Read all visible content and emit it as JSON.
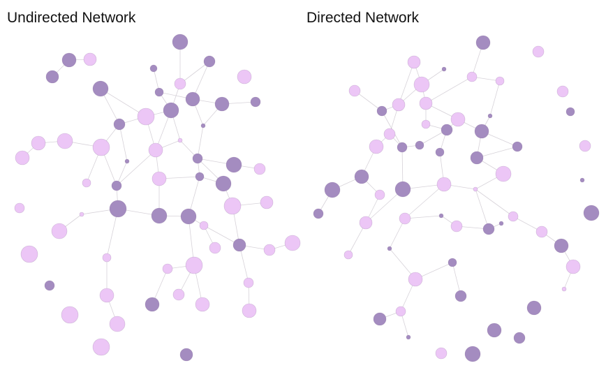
{
  "colors": {
    "dark": "#a48cc0",
    "light": "#ecc6f6",
    "edge": "#c9c3cc",
    "title": "#111111"
  },
  "networks": [
    {
      "title": "Undirected Network",
      "nodes": [
        [
          258,
          60,
          11,
          "d"
        ],
        [
          99,
          86,
          10,
          "d"
        ],
        [
          129,
          85,
          9,
          "l"
        ],
        [
          75,
          110,
          9,
          "d"
        ],
        [
          220,
          98,
          5,
          "d"
        ],
        [
          300,
          88,
          8,
          "d"
        ],
        [
          350,
          110,
          10,
          "l"
        ],
        [
          258,
          120,
          8,
          "l"
        ],
        [
          144,
          127,
          11,
          "d"
        ],
        [
          228,
          132,
          6,
          "d"
        ],
        [
          276,
          142,
          10,
          "d"
        ],
        [
          318,
          149,
          10,
          "d"
        ],
        [
          366,
          146,
          7,
          "d"
        ],
        [
          209,
          167,
          12,
          "l"
        ],
        [
          245,
          158,
          11,
          "d"
        ],
        [
          171,
          178,
          8,
          "d"
        ],
        [
          291,
          180,
          3,
          "d"
        ],
        [
          55,
          205,
          10,
          "l"
        ],
        [
          93,
          202,
          11,
          "l"
        ],
        [
          145,
          211,
          12,
          "l"
        ],
        [
          258,
          201,
          3,
          "l"
        ],
        [
          223,
          215,
          10,
          "l"
        ],
        [
          32,
          226,
          10,
          "l"
        ],
        [
          182,
          231,
          3,
          "d"
        ],
        [
          283,
          227,
          7,
          "d"
        ],
        [
          335,
          236,
          11,
          "d"
        ],
        [
          372,
          242,
          8,
          "l"
        ],
        [
          124,
          262,
          6,
          "l"
        ],
        [
          167,
          266,
          7,
          "d"
        ],
        [
          228,
          256,
          10,
          "l"
        ],
        [
          286,
          253,
          6,
          "d"
        ],
        [
          320,
          263,
          11,
          "d"
        ],
        [
          28,
          298,
          7,
          "l"
        ],
        [
          169,
          299,
          12,
          "d"
        ],
        [
          117,
          307,
          3,
          "l"
        ],
        [
          333,
          295,
          12,
          "l"
        ],
        [
          382,
          290,
          9,
          "l"
        ],
        [
          228,
          309,
          11,
          "d"
        ],
        [
          270,
          310,
          11,
          "d"
        ],
        [
          85,
          331,
          11,
          "l"
        ],
        [
          292,
          323,
          6,
          "l"
        ],
        [
          343,
          351,
          9,
          "d"
        ],
        [
          308,
          355,
          8,
          "l"
        ],
        [
          386,
          358,
          8,
          "l"
        ],
        [
          419,
          348,
          11,
          "l"
        ],
        [
          42,
          364,
          12,
          "l"
        ],
        [
          153,
          369,
          6,
          "l"
        ],
        [
          278,
          380,
          12,
          "l"
        ],
        [
          240,
          385,
          7,
          "l"
        ],
        [
          71,
          409,
          7,
          "d"
        ],
        [
          356,
          405,
          7,
          "l"
        ],
        [
          153,
          423,
          10,
          "l"
        ],
        [
          256,
          422,
          8,
          "l"
        ],
        [
          218,
          436,
          10,
          "d"
        ],
        [
          290,
          436,
          10,
          "l"
        ],
        [
          100,
          451,
          12,
          "l"
        ],
        [
          357,
          445,
          10,
          "l"
        ],
        [
          168,
          464,
          11,
          "l"
        ],
        [
          145,
          497,
          12,
          "l"
        ],
        [
          267,
          508,
          9,
          "d"
        ]
      ],
      "edges": [
        [
          1,
          2
        ],
        [
          1,
          3
        ],
        [
          8,
          13
        ],
        [
          8,
          15
        ],
        [
          0,
          7
        ],
        [
          4,
          9
        ],
        [
          5,
          7
        ],
        [
          5,
          10
        ],
        [
          9,
          10
        ],
        [
          10,
          11
        ],
        [
          11,
          12
        ],
        [
          7,
          14
        ],
        [
          14,
          13
        ],
        [
          14,
          20
        ],
        [
          14,
          21
        ],
        [
          10,
          16
        ],
        [
          16,
          24
        ],
        [
          13,
          15
        ],
        [
          15,
          19
        ],
        [
          19,
          18
        ],
        [
          18,
          17
        ],
        [
          17,
          22
        ],
        [
          15,
          23
        ],
        [
          23,
          28
        ],
        [
          19,
          27
        ],
        [
          19,
          28
        ],
        [
          21,
          20
        ],
        [
          21,
          28
        ],
        [
          21,
          29
        ],
        [
          20,
          24
        ],
        [
          24,
          25
        ],
        [
          25,
          26
        ],
        [
          24,
          30
        ],
        [
          30,
          31
        ],
        [
          31,
          35
        ],
        [
          35,
          36
        ],
        [
          29,
          37
        ],
        [
          28,
          33
        ],
        [
          33,
          34
        ],
        [
          33,
          37
        ],
        [
          37,
          38
        ],
        [
          38,
          30
        ],
        [
          38,
          40
        ],
        [
          40,
          42
        ],
        [
          40,
          41
        ],
        [
          41,
          43
        ],
        [
          43,
          44
        ],
        [
          35,
          41
        ],
        [
          38,
          47
        ],
        [
          47,
          48
        ],
        [
          48,
          53
        ],
        [
          47,
          52
        ],
        [
          47,
          54
        ],
        [
          41,
          50
        ],
        [
          50,
          56
        ],
        [
          33,
          46
        ],
        [
          46,
          51
        ],
        [
          51,
          57
        ],
        [
          34,
          39
        ],
        [
          30,
          29
        ],
        [
          13,
          21
        ],
        [
          24,
          31
        ],
        [
          14,
          9
        ],
        [
          11,
          16
        ]
      ]
    },
    {
      "title": "Directed Network",
      "nodes": [
        [
          692,
          61,
          10,
          "d"
        ],
        [
          771,
          74,
          8,
          "l"
        ],
        [
          593,
          89,
          9,
          "l"
        ],
        [
          636,
          99,
          3,
          "d"
        ],
        [
          676,
          110,
          7,
          "l"
        ],
        [
          716,
          116,
          6,
          "l"
        ],
        [
          604,
          121,
          11,
          "l"
        ],
        [
          508,
          130,
          8,
          "l"
        ],
        [
          806,
          131,
          8,
          "l"
        ],
        [
          571,
          150,
          9,
          "l"
        ],
        [
          610,
          148,
          9,
          "l"
        ],
        [
          547,
          159,
          7,
          "d"
        ],
        [
          656,
          171,
          10,
          "l"
        ],
        [
          702,
          166,
          3,
          "d"
        ],
        [
          817,
          160,
          6,
          "d"
        ],
        [
          610,
          178,
          6,
          "l"
        ],
        [
          558,
          192,
          8,
          "l"
        ],
        [
          640,
          186,
          8,
          "d"
        ],
        [
          690,
          188,
          10,
          "d"
        ],
        [
          539,
          210,
          10,
          "l"
        ],
        [
          576,
          211,
          7,
          "d"
        ],
        [
          601,
          208,
          6,
          "d"
        ],
        [
          630,
          218,
          6,
          "d"
        ],
        [
          683,
          226,
          9,
          "d"
        ],
        [
          741,
          210,
          7,
          "d"
        ],
        [
          838,
          209,
          8,
          "l"
        ],
        [
          518,
          253,
          10,
          "d"
        ],
        [
          721,
          249,
          11,
          "l"
        ],
        [
          834,
          258,
          3,
          "d"
        ],
        [
          476,
          272,
          11,
          "d"
        ],
        [
          577,
          271,
          11,
          "d"
        ],
        [
          636,
          264,
          10,
          "l"
        ],
        [
          681,
          271,
          3,
          "l"
        ],
        [
          544,
          279,
          7,
          "l"
        ],
        [
          456,
          306,
          7,
          "d"
        ],
        [
          524,
          319,
          9,
          "l"
        ],
        [
          580,
          313,
          8,
          "l"
        ],
        [
          632,
          309,
          3,
          "d"
        ],
        [
          654,
          324,
          8,
          "l"
        ],
        [
          700,
          328,
          8,
          "d"
        ],
        [
          718,
          320,
          3,
          "d"
        ],
        [
          735,
          310,
          7,
          "l"
        ],
        [
          776,
          332,
          8,
          "l"
        ],
        [
          847,
          305,
          11,
          "d"
        ],
        [
          558,
          356,
          3,
          "d"
        ],
        [
          499,
          365,
          6,
          "l"
        ],
        [
          804,
          352,
          10,
          "d"
        ],
        [
          648,
          376,
          6,
          "d"
        ],
        [
          821,
          382,
          10,
          "l"
        ],
        [
          595,
          400,
          10,
          "l"
        ],
        [
          808,
          414,
          3,
          "l"
        ],
        [
          660,
          424,
          8,
          "d"
        ],
        [
          574,
          446,
          7,
          "l"
        ],
        [
          765,
          441,
          10,
          "d"
        ],
        [
          544,
          457,
          9,
          "d"
        ],
        [
          708,
          473,
          10,
          "d"
        ],
        [
          744,
          484,
          8,
          "d"
        ],
        [
          585,
          483,
          3,
          "d"
        ],
        [
          632,
          506,
          8,
          "l"
        ],
        [
          677,
          507,
          11,
          "d"
        ]
      ],
      "edges": [
        [
          0,
          4
        ],
        [
          2,
          6
        ],
        [
          3,
          6
        ],
        [
          4,
          5
        ],
        [
          4,
          10
        ],
        [
          6,
          9
        ],
        [
          6,
          10
        ],
        [
          9,
          11
        ],
        [
          9,
          16
        ],
        [
          10,
          12
        ],
        [
          10,
          15
        ],
        [
          12,
          17
        ],
        [
          12,
          18
        ],
        [
          13,
          18
        ],
        [
          5,
          13
        ],
        [
          15,
          17
        ],
        [
          16,
          19
        ],
        [
          16,
          20
        ],
        [
          17,
          21
        ],
        [
          17,
          22
        ],
        [
          18,
          23
        ],
        [
          23,
          24
        ],
        [
          21,
          20
        ],
        [
          22,
          31
        ],
        [
          23,
          27
        ],
        [
          19,
          26
        ],
        [
          26,
          29
        ],
        [
          26,
          33
        ],
        [
          20,
          30
        ],
        [
          30,
          31
        ],
        [
          31,
          32
        ],
        [
          31,
          36
        ],
        [
          32,
          39
        ],
        [
          32,
          41
        ],
        [
          41,
          42
        ],
        [
          42,
          46
        ],
        [
          46,
          48
        ],
        [
          48,
          50
        ],
        [
          36,
          37
        ],
        [
          37,
          38
        ],
        [
          38,
          39
        ],
        [
          39,
          40
        ],
        [
          33,
          35
        ],
        [
          35,
          45
        ],
        [
          36,
          44
        ],
        [
          44,
          49
        ],
        [
          47,
          49
        ],
        [
          47,
          51
        ],
        [
          49,
          52
        ],
        [
          52,
          54
        ],
        [
          52,
          57
        ],
        [
          29,
          34
        ],
        [
          11,
          7
        ],
        [
          2,
          9
        ],
        [
          18,
          24
        ],
        [
          27,
          32
        ],
        [
          30,
          35
        ],
        [
          11,
          20
        ]
      ]
    }
  ]
}
